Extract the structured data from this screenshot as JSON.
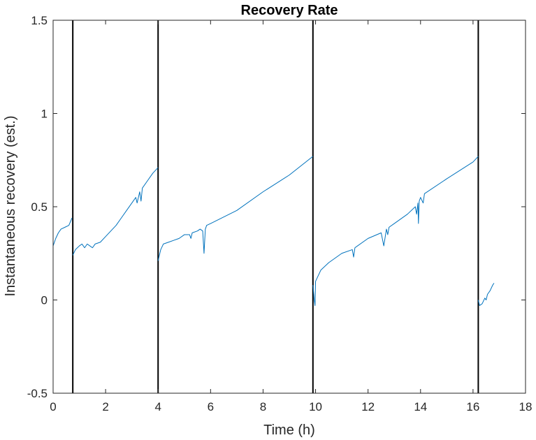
{
  "chart_data": {
    "type": "line",
    "title": "Recovery Rate",
    "xlabel": "Time (h)",
    "ylabel": "Instantaneous recovery (est.)",
    "xlim": [
      0,
      18
    ],
    "ylim": [
      -0.5,
      1.5
    ],
    "xticks": [
      0,
      2,
      4,
      6,
      8,
      10,
      12,
      14,
      16,
      18
    ],
    "yticks": [
      -0.5,
      0,
      0.5,
      1,
      1.5
    ],
    "xtick_labels": [
      "0",
      "2",
      "4",
      "6",
      "8",
      "10",
      "12",
      "14",
      "16",
      "18"
    ],
    "ytick_labels": [
      "-0.5",
      "0",
      "0.5",
      "1",
      "1.5"
    ],
    "grid": false,
    "vertical_lines": [
      0.75,
      4.0,
      9.9,
      16.2
    ],
    "series_color": "#0072BD",
    "vline_color": "#000000",
    "series": [
      {
        "segments": [
          [
            [
              0.0,
              0.29
            ],
            [
              0.1,
              0.33
            ],
            [
              0.2,
              0.36
            ],
            [
              0.3,
              0.38
            ],
            [
              0.45,
              0.39
            ],
            [
              0.6,
              0.4
            ],
            [
              0.72,
              0.44
            ]
          ],
          [
            [
              0.75,
              0.24
            ],
            [
              0.85,
              0.27
            ],
            [
              1.0,
              0.29
            ],
            [
              1.1,
              0.3
            ],
            [
              1.2,
              0.28
            ],
            [
              1.3,
              0.3
            ],
            [
              1.4,
              0.29
            ],
            [
              1.5,
              0.28
            ],
            [
              1.6,
              0.3
            ],
            [
              1.8,
              0.31
            ],
            [
              2.0,
              0.34
            ],
            [
              2.2,
              0.37
            ],
            [
              2.4,
              0.4
            ],
            [
              2.6,
              0.44
            ],
            [
              2.8,
              0.48
            ],
            [
              3.0,
              0.52
            ],
            [
              3.15,
              0.55
            ],
            [
              3.2,
              0.52
            ],
            [
              3.3,
              0.58
            ],
            [
              3.35,
              0.53
            ],
            [
              3.4,
              0.6
            ],
            [
              3.6,
              0.64
            ],
            [
              3.8,
              0.68
            ],
            [
              4.0,
              0.71
            ]
          ],
          [
            [
              4.0,
              0.21
            ],
            [
              4.1,
              0.27
            ],
            [
              4.2,
              0.3
            ],
            [
              4.4,
              0.31
            ],
            [
              4.6,
              0.32
            ],
            [
              4.8,
              0.33
            ],
            [
              5.0,
              0.35
            ],
            [
              5.2,
              0.35
            ],
            [
              5.25,
              0.33
            ],
            [
              5.3,
              0.36
            ],
            [
              5.5,
              0.37
            ],
            [
              5.6,
              0.38
            ],
            [
              5.7,
              0.37
            ],
            [
              5.75,
              0.25
            ],
            [
              5.8,
              0.38
            ],
            [
              5.85,
              0.4
            ],
            [
              6.0,
              0.41
            ],
            [
              7.0,
              0.48
            ],
            [
              8.0,
              0.58
            ],
            [
              9.0,
              0.67
            ],
            [
              9.9,
              0.77
            ]
          ],
          [
            [
              9.9,
              0.08
            ],
            [
              9.95,
              0.0
            ],
            [
              9.98,
              -0.03
            ],
            [
              10.0,
              0.1
            ],
            [
              10.2,
              0.16
            ],
            [
              10.5,
              0.2
            ],
            [
              11.0,
              0.25
            ],
            [
              11.4,
              0.27
            ],
            [
              11.45,
              0.23
            ],
            [
              11.5,
              0.28
            ],
            [
              12.0,
              0.33
            ],
            [
              12.5,
              0.36
            ],
            [
              12.6,
              0.29
            ],
            [
              12.7,
              0.38
            ],
            [
              12.75,
              0.35
            ],
            [
              12.8,
              0.39
            ],
            [
              13.0,
              0.41
            ],
            [
              13.5,
              0.46
            ],
            [
              13.8,
              0.5
            ],
            [
              13.85,
              0.46
            ],
            [
              13.9,
              0.52
            ],
            [
              13.92,
              0.41
            ],
            [
              13.95,
              0.53
            ],
            [
              14.0,
              0.55
            ],
            [
              14.1,
              0.52
            ],
            [
              14.15,
              0.57
            ],
            [
              15.0,
              0.65
            ],
            [
              16.0,
              0.74
            ],
            [
              16.2,
              0.77
            ]
          ],
          [
            [
              16.2,
              0.0
            ],
            [
              16.25,
              -0.03
            ],
            [
              16.35,
              -0.02
            ],
            [
              16.45,
              0.01
            ],
            [
              16.5,
              0.0
            ],
            [
              16.55,
              0.03
            ],
            [
              16.65,
              0.05
            ],
            [
              16.75,
              0.08
            ],
            [
              16.8,
              0.09
            ]
          ]
        ]
      }
    ]
  }
}
